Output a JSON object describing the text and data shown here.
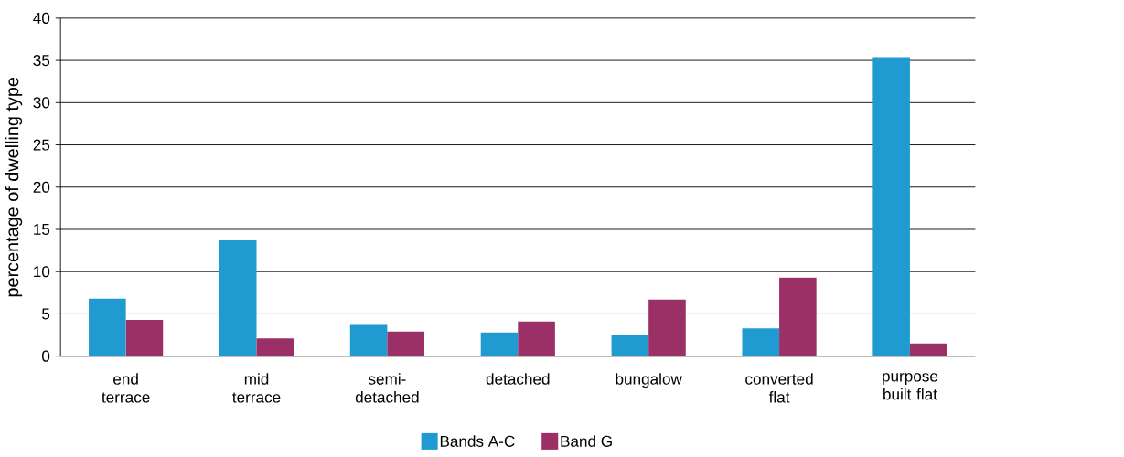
{
  "chart_data": {
    "type": "bar",
    "ylabel": "percentage of dwelling type",
    "categories": [
      "end terrace",
      "mid terrace",
      "semi-detached",
      "detached",
      "bungalow",
      "converted flat",
      "purpose built flat"
    ],
    "series": [
      {
        "name": "Bands A-C",
        "color": "#1f9bd1",
        "values": [
          6.8,
          13.7,
          3.7,
          2.8,
          2.5,
          3.3,
          35.4
        ]
      },
      {
        "name": "Band G",
        "color": "#9b3066",
        "values": [
          4.3,
          2.1,
          2.9,
          4.1,
          6.7,
          9.3,
          1.5
        ]
      }
    ],
    "ylim": [
      0,
      40
    ],
    "yticks": [
      0,
      5,
      10,
      15,
      20,
      25,
      30,
      35,
      40
    ],
    "grid": "y",
    "legend": "bottom"
  }
}
